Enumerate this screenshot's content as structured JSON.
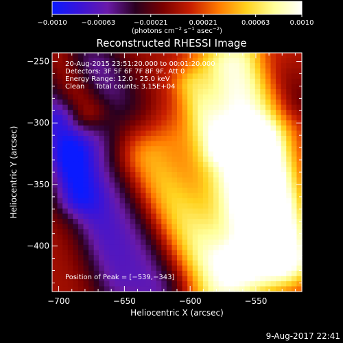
{
  "chart_data": {
    "type": "heatmap",
    "title": "Reconstructed RHESSI Image",
    "xlabel": "Heliocentric X (arcsec)",
    "ylabel": "Heliocentric Y (arcsec)",
    "xlim": [
      -705,
      -515
    ],
    "ylim": [
      -437,
      -243
    ],
    "x_ticks": [
      -700,
      -650,
      -600,
      -550
    ],
    "y_ticks": [
      -250,
      -300,
      -350,
      -400
    ],
    "x_tick_labels": [
      "−700",
      "−650",
      "−600",
      "−550"
    ],
    "y_tick_labels": [
      "−250",
      "−300",
      "−350",
      "−400"
    ],
    "colorbar": {
      "min": -0.001,
      "max": 0.001,
      "ticks": [
        -0.001,
        -0.00063,
        -0.00021,
        0.00021,
        0.00063,
        0.001
      ],
      "tick_labels": [
        "−0.0010",
        "−0.00063",
        "−0.00021",
        "0.00021",
        "0.00063",
        "0.0010"
      ],
      "unit_prefix": "(photons cm",
      "unit_sup1": "−2",
      "unit_mid1": " s",
      "unit_sup2": "−1",
      "unit_mid2": " asec",
      "unit_sup3": "−2",
      "unit_suffix": ")",
      "colors": [
        "#0a1aff",
        "#3a14d8",
        "#6a1aa8",
        "#2a0020",
        "#7a0000",
        "#c81e00",
        "#ff7a00",
        "#ffd21e",
        "#ffff9a",
        "#ffffff"
      ]
    },
    "features": [
      {
        "from": [
          -700,
          -255
        ],
        "to": [
          -625,
          -430
        ],
        "value": -0.00075,
        "width": 22
      },
      {
        "from": [
          -702,
          -300
        ],
        "to": [
          -690,
          -360
        ],
        "value": -0.0004,
        "width": 12
      },
      {
        "from": [
          -665,
          -255
        ],
        "to": [
          -575,
          -390
        ],
        "value": -0.00028,
        "width": 14
      },
      {
        "from": [
          -690,
          -330
        ],
        "to": [
          -660,
          -430
        ],
        "value": -0.0003,
        "width": 12
      },
      {
        "from": [
          -630,
          -330
        ],
        "to": [
          -580,
          -430
        ],
        "value": 0.00085,
        "width": 24
      },
      {
        "from": [
          -565,
          -255
        ],
        "to": [
          -552,
          -400
        ],
        "value": 0.00095,
        "width": 22
      },
      {
        "from": [
          -548,
          -320
        ],
        "to": [
          -525,
          -410
        ],
        "value": 0.0008,
        "width": 16
      },
      {
        "from": [
          -600,
          -270
        ],
        "to": [
          -580,
          -320
        ],
        "value": 0.00035,
        "width": 10
      },
      {
        "from": [
          -700,
          -250
        ],
        "to": [
          -680,
          -290
        ],
        "value": 0.0007,
        "width": 12
      },
      {
        "from": [
          -540,
          -250
        ],
        "to": [
          -520,
          -280
        ],
        "value": -0.00025,
        "width": 12
      }
    ],
    "annotations": [
      "20-Aug-2015 23:51:20.000 to 00:01:20.000",
      "Detectors: 3F 5F 6F 7F 8F 9F, Att 0",
      "Energy Range: 12.0 - 25.0 keV",
      "Clean     Total counts: 3.15E+04"
    ],
    "peak_label": "Position of Peak = [−539,−343]",
    "peak_position": [
      -539,
      -343
    ]
  },
  "timestamp": "9-Aug-2017 22:41"
}
